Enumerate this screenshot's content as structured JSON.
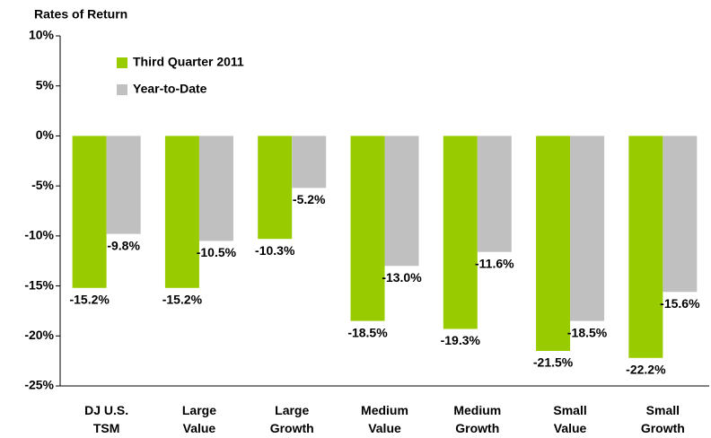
{
  "chart_data": {
    "type": "bar",
    "title": "Rates of Return",
    "categories": [
      "DJ U.S.\nTSM",
      "Large\nValue",
      "Large\nGrowth",
      "Medium\nValue",
      "Medium\nGrowth",
      "Small\nValue",
      "Small\nGrowth"
    ],
    "series": [
      {
        "name": "Third Quarter 2011",
        "color": "#99cc00",
        "values": [
          -15.2,
          -15.2,
          -10.3,
          -18.5,
          -19.3,
          -21.5,
          -22.2
        ],
        "value_labels": [
          "-15.2%",
          "-15.2%",
          "-10.3%",
          "-18.5%",
          "-19.3%",
          "-21.5%",
          "-22.2%"
        ]
      },
      {
        "name": "Year-to-Date",
        "color": "#c0c0c0",
        "values": [
          -9.8,
          -10.5,
          -5.2,
          -13.0,
          -11.6,
          -18.5,
          -15.6
        ],
        "value_labels": [
          "-9.8%",
          "-10.5%",
          "-5.2%",
          "-13.0%",
          "-11.6%",
          "-18.5%",
          "-15.6%"
        ]
      }
    ],
    "ylim": [
      -25,
      10
    ],
    "yticks": [
      {
        "value": -25,
        "label": "-25%"
      },
      {
        "value": -20,
        "label": "-20%"
      },
      {
        "value": -15,
        "label": "-15%"
      },
      {
        "value": -10,
        "label": "-10%"
      },
      {
        "value": -5,
        "label": "-5%"
      },
      {
        "value": 0,
        "label": "0%"
      },
      {
        "value": 5,
        "label": "5%"
      },
      {
        "value": 10,
        "label": "10%"
      }
    ],
    "grid": false,
    "legend": "upper left"
  }
}
